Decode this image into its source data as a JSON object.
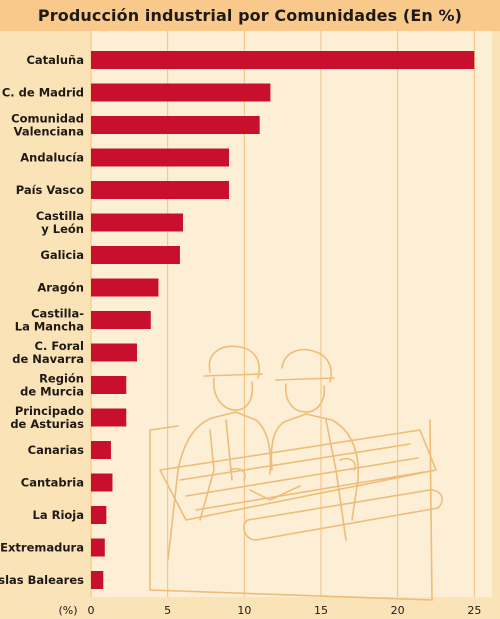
{
  "chart_data": {
    "type": "bar",
    "orientation": "horizontal",
    "title": "Producción industrial por Comunidades (En %)",
    "categories": [
      [
        "Cataluña"
      ],
      [
        "C. de Madrid"
      ],
      [
        "Comunidad",
        "Valenciana"
      ],
      [
        "Andalucía"
      ],
      [
        "País Vasco"
      ],
      [
        "Castilla",
        "y León"
      ],
      [
        "Galicia"
      ],
      [
        "Aragón"
      ],
      [
        "Castilla-",
        "La Mancha"
      ],
      [
        "C. Foral",
        "de Navarra"
      ],
      [
        "Región",
        "de Murcia"
      ],
      [
        "Principado",
        "de Asturias"
      ],
      [
        "Canarias"
      ],
      [
        "Cantabria"
      ],
      [
        "La Rioja"
      ],
      [
        "Extremadura"
      ],
      [
        "Islas Baleares"
      ]
    ],
    "values": [
      25.0,
      11.7,
      11.0,
      9.0,
      9.0,
      6.0,
      5.8,
      4.4,
      3.9,
      3.0,
      2.3,
      2.3,
      1.3,
      1.4,
      1.0,
      0.9,
      0.8
    ],
    "xlabel": "(%)",
    "xlim": [
      0,
      25.5
    ],
    "xticks": [
      0,
      5,
      10,
      15,
      20,
      25
    ],
    "grid": true,
    "legend": "none",
    "colors": {
      "bar": "#c8102e",
      "plot_background": "#fdefd6",
      "page_background": "#fbe3b8",
      "title_background": "#f8c98a",
      "grid": "#f2c07a",
      "illustration": "#eebc78"
    }
  }
}
